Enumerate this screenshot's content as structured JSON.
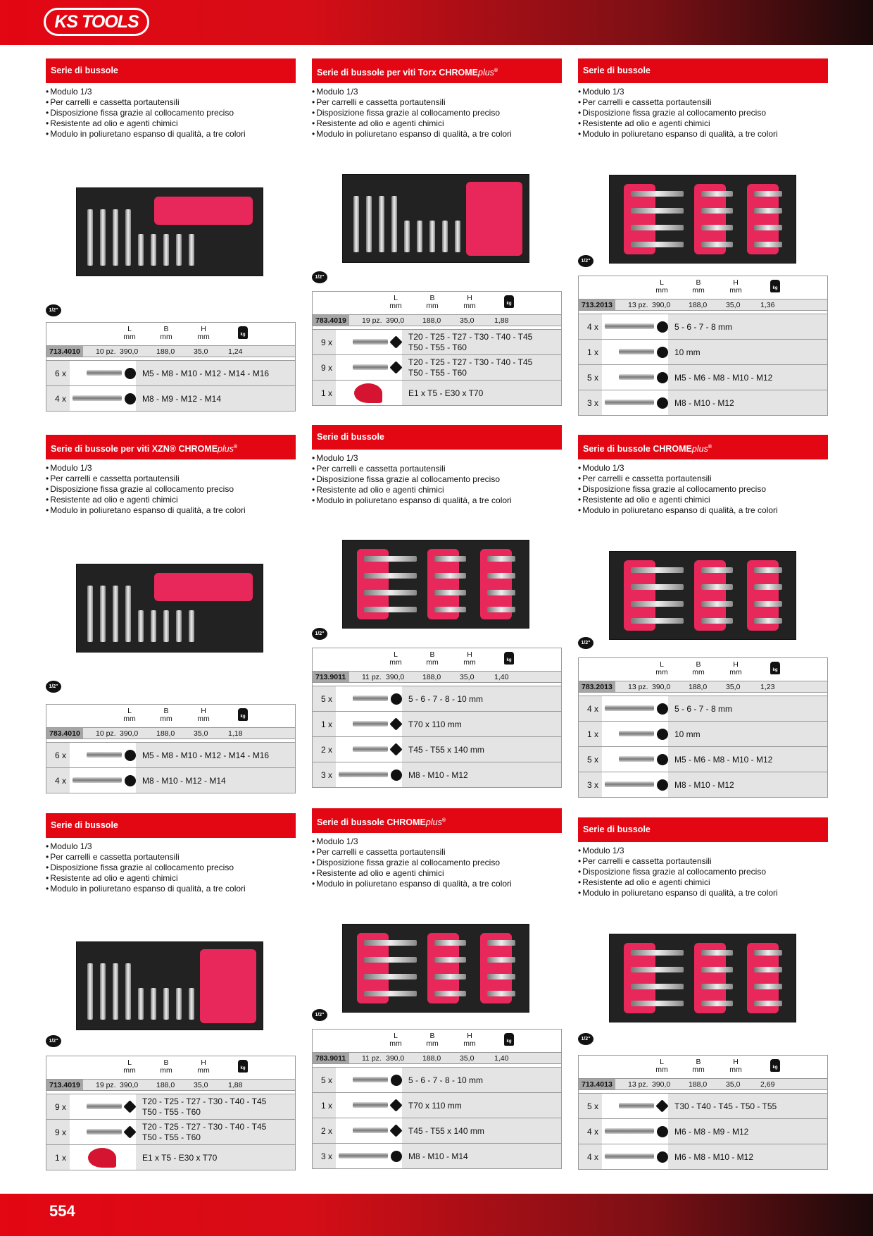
{
  "brand": {
    "logo_text": "KS TOOLS"
  },
  "page_number": "554",
  "bullets_common": [
    "Modulo 1/3",
    "Per carrelli e cassetta portautensili",
    "Disposizione fissa grazie al collocamento preciso",
    "Resistente ad olio e agenti chimici",
    "Modulo in poliuretano espanso di qualità, a tre colori"
  ],
  "spec_headers": {
    "L": "L",
    "B": "B",
    "H": "H",
    "unit": "mm",
    "weight_icon": "kg"
  },
  "drive": "1/2\"",
  "cards": [
    {
      "title": "Serie di bussole",
      "chrome": "",
      "code": "713.4010",
      "pcs": "10 pz.",
      "L": "390,0",
      "B": "188,0",
      "H": "35,0",
      "kg": "1,24",
      "rows": [
        {
          "qty": "6 x",
          "l1": "M5 - M8 - M10 - M12 - M14 - M16",
          "l2": "",
          "shape": "hex"
        },
        {
          "qty": "4 x",
          "l1": "M8 - M9 - M12 - M14",
          "l2": "",
          "shape": "hex"
        }
      ]
    },
    {
      "title": "Serie di bussole per viti Torx CHROME",
      "chrome": "plus",
      "code": "783.4019",
      "pcs": "19 pz.",
      "L": "390,0",
      "B": "188,0",
      "H": "35,0",
      "kg": "1,88",
      "rows": [
        {
          "qty": "9 x",
          "l1": "T20 - T25 - T27 - T30 - T40 - T45",
          "l2": "T50 - T55 - T60",
          "shape": "star"
        },
        {
          "qty": "9 x",
          "l1": "T20 - T25 - T27 - T30 - T40 - T45",
          "l2": "T50 - T55 - T60",
          "shape": "star"
        },
        {
          "qty": "1 x",
          "l1": "E1 x T5 - E30 x T70",
          "l2": "",
          "shape": "fan"
        }
      ]
    },
    {
      "title": "Serie di bussole",
      "chrome": "",
      "code": "713.2013",
      "pcs": "13 pz.",
      "L": "390,0",
      "B": "188,0",
      "H": "35,0",
      "kg": "1,36",
      "rows": [
        {
          "qty": "4 x",
          "l1": "5 - 6 - 7 - 8 mm",
          "l2": "",
          "shape": "hex"
        },
        {
          "qty": "1 x",
          "l1": "10 mm",
          "l2": "",
          "shape": "hex"
        },
        {
          "qty": "5 x",
          "l1": "M5 - M6 - M8 - M10 - M12",
          "l2": "",
          "shape": "hex"
        },
        {
          "qty": "3 x",
          "l1": "M8 - M10 - M12",
          "l2": "",
          "shape": "hex"
        }
      ]
    },
    {
      "title": "Serie di bussole per viti XZN® CHROME",
      "chrome": "plus",
      "code": "783.4010",
      "pcs": "10 pz.",
      "L": "390,0",
      "B": "188,0",
      "H": "35,0",
      "kg": "1,18",
      "rows": [
        {
          "qty": "6 x",
          "l1": "M5 - M8 - M10 - M12 - M14 - M16",
          "l2": "",
          "shape": "hex"
        },
        {
          "qty": "4 x",
          "l1": "M8 - M10 - M12 - M14",
          "l2": "",
          "shape": "hex"
        }
      ]
    },
    {
      "title": "Serie di bussole",
      "chrome": "",
      "code": "713.9011",
      "pcs": "11 pz.",
      "L": "390,0",
      "B": "188,0",
      "H": "35,0",
      "kg": "1,40",
      "rows": [
        {
          "qty": "5 x",
          "l1": "5 - 6 - 7 - 8 - 10 mm",
          "l2": "",
          "shape": "hex"
        },
        {
          "qty": "1 x",
          "l1": "T70 x 110 mm",
          "l2": "",
          "shape": "star"
        },
        {
          "qty": "2 x",
          "l1": "T45 - T55 x 140 mm",
          "l2": "",
          "shape": "star"
        },
        {
          "qty": "3 x",
          "l1": "M8 - M10 - M12",
          "l2": "",
          "shape": "hex"
        }
      ]
    },
    {
      "title": "Serie di bussole CHROME",
      "chrome": "plus",
      "code": "783.2013",
      "pcs": "13 pz.",
      "L": "390,0",
      "B": "188,0",
      "H": "35,0",
      "kg": "1,23",
      "rows": [
        {
          "qty": "4 x",
          "l1": "5 - 6 - 7 - 8 mm",
          "l2": "",
          "shape": "hex"
        },
        {
          "qty": "1 x",
          "l1": "10 mm",
          "l2": "",
          "shape": "hex"
        },
        {
          "qty": "5 x",
          "l1": "M5 - M6 - M8 - M10 - M12",
          "l2": "",
          "shape": "hex"
        },
        {
          "qty": "3 x",
          "l1": "M8 - M10 - M12",
          "l2": "",
          "shape": "hex"
        }
      ]
    },
    {
      "title": "Serie di bussole",
      "chrome": "",
      "code": "713.4019",
      "pcs": "19 pz.",
      "L": "390,0",
      "B": "188,0",
      "H": "35,0",
      "kg": "1,88",
      "rows": [
        {
          "qty": "9 x",
          "l1": "T20 - T25 - T27 - T30 - T40 - T45",
          "l2": "T50 - T55 - T60",
          "shape": "star"
        },
        {
          "qty": "9 x",
          "l1": "T20 - T25 - T27 - T30 - T40 - T45",
          "l2": "T50 - T55 - T60",
          "shape": "star"
        },
        {
          "qty": "1 x",
          "l1": "E1 x T5 - E30 x T70",
          "l2": "",
          "shape": "fan"
        }
      ]
    },
    {
      "title": "Serie di bussole CHROME",
      "chrome": "plus",
      "code": "783.9011",
      "pcs": "11 pz.",
      "L": "390,0",
      "B": "188,0",
      "H": "35,0",
      "kg": "1,40",
      "rows": [
        {
          "qty": "5 x",
          "l1": "5 - 6 - 7 - 8 - 10 mm",
          "l2": "",
          "shape": "hex"
        },
        {
          "qty": "1 x",
          "l1": "T70 x 110 mm",
          "l2": "",
          "shape": "star"
        },
        {
          "qty": "2 x",
          "l1": "T45 - T55 x 140 mm",
          "l2": "",
          "shape": "star"
        },
        {
          "qty": "3 x",
          "l1": "M8 - M10 - M14",
          "l2": "",
          "shape": "hex"
        }
      ]
    },
    {
      "title": "Serie di bussole",
      "chrome": "",
      "code": "713.4013",
      "pcs": "13 pz.",
      "L": "390,0",
      "B": "188,0",
      "H": "35,0",
      "kg": "2,69",
      "rows": [
        {
          "qty": "5 x",
          "l1": "T30 - T40 - T45 - T50 - T55",
          "l2": "",
          "shape": "star"
        },
        {
          "qty": "4 x",
          "l1": "M6 - M8 - M9 - M12",
          "l2": "",
          "shape": "hex"
        },
        {
          "qty": "4 x",
          "l1": "M6 - M8 - M10 - M12",
          "l2": "",
          "shape": "hex"
        }
      ]
    }
  ]
}
